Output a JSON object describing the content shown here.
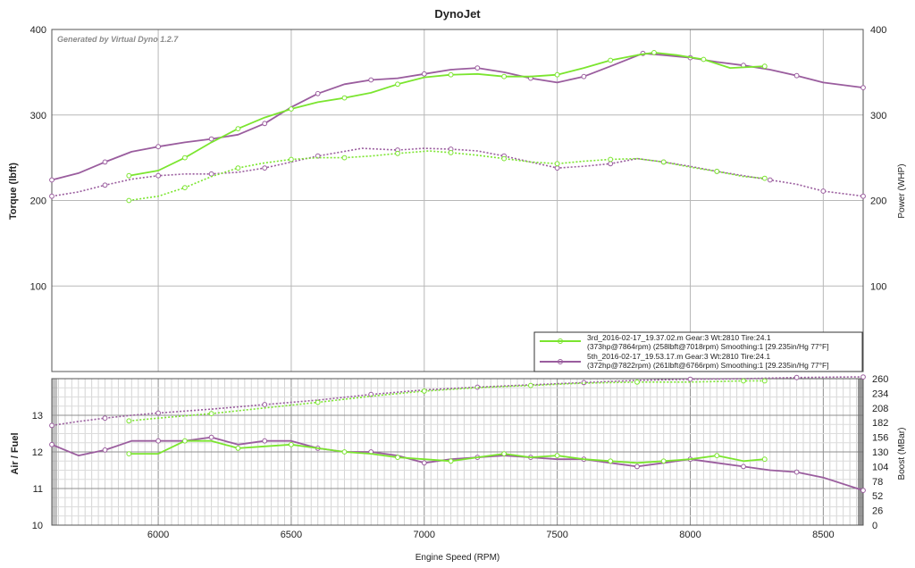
{
  "chart_data": [
    {
      "type": "line",
      "title": "DynoJet",
      "watermark": "Generated by Virtual Dyno 1.2.7",
      "ylabel": "Torque (lbft)",
      "y2label": "Power (WHP)",
      "xlim": [
        5600,
        8650
      ],
      "ylim": [
        0,
        400
      ],
      "y2lim": [
        0,
        400
      ],
      "yticks": [
        "100",
        "200",
        "300",
        "400"
      ],
      "y2ticks": [
        "100",
        "200",
        "300",
        "400"
      ],
      "grid": true,
      "legend_position": "bottom-right",
      "legend": [
        {
          "line1": "3rd_2016-02-17_19.37.02.m Gear:3 Wt:2810 Tire:24.1",
          "line2": "(373hp@7864rpm) (258lbft@7018rpm) Smoothing:1 [29.235in/Hg 77°F]",
          "color": "#7be52f"
        },
        {
          "line1": "5th_2016-02-17_19.53.17.m Gear:3 Wt:2810 Tire:24.1",
          "line2": "(372hp@7822rpm) (261lbft@6766rpm) Smoothing:1 [29.235in/Hg 77°F]",
          "color": "#9a5d9e"
        }
      ],
      "series": [
        {
          "run": "3rd",
          "measure": "power",
          "color": "#7be52f",
          "style": "solid",
          "x": [
            5890,
            6000,
            6100,
            6200,
            6300,
            6400,
            6500,
            6600,
            6700,
            6800,
            6900,
            7000,
            7100,
            7200,
            7300,
            7400,
            7500,
            7600,
            7700,
            7800,
            7864,
            7950,
            8050,
            8150,
            8280
          ],
          "y": [
            229,
            235,
            250,
            268,
            284,
            297,
            307,
            315,
            320,
            326,
            336,
            344,
            347,
            348,
            345,
            345,
            347,
            355,
            364,
            370,
            373,
            370,
            365,
            355,
            357
          ]
        },
        {
          "run": "5th",
          "measure": "power",
          "color": "#9a5d9e",
          "style": "solid",
          "x": [
            5600,
            5700,
            5800,
            5900,
            6000,
            6100,
            6200,
            6300,
            6400,
            6500,
            6600,
            6700,
            6800,
            6900,
            7000,
            7100,
            7200,
            7300,
            7400,
            7500,
            7600,
            7700,
            7822,
            7900,
            8000,
            8100,
            8200,
            8300,
            8400,
            8500,
            8650
          ],
          "y": [
            224,
            232,
            245,
            257,
            263,
            268,
            272,
            277,
            290,
            309,
            325,
            336,
            341,
            343,
            348,
            353,
            355,
            350,
            343,
            338,
            345,
            357,
            372,
            370,
            367,
            362,
            358,
            353,
            346,
            338,
            332
          ]
        },
        {
          "run": "3rd",
          "measure": "torque",
          "color": "#7be52f",
          "style": "dotted",
          "x": [
            5890,
            6000,
            6100,
            6200,
            6300,
            6400,
            6500,
            6600,
            6700,
            6800,
            6900,
            7018,
            7100,
            7200,
            7300,
            7400,
            7500,
            7600,
            7700,
            7800,
            7900,
            8000,
            8100,
            8200,
            8280
          ],
          "y": [
            200,
            205,
            215,
            228,
            238,
            244,
            248,
            250,
            250,
            252,
            255,
            258,
            256,
            253,
            249,
            245,
            243,
            246,
            248,
            249,
            245,
            239,
            234,
            228,
            226
          ]
        },
        {
          "run": "5th",
          "measure": "torque",
          "color": "#9a5d9e",
          "style": "dotted",
          "x": [
            5600,
            5700,
            5800,
            5900,
            6000,
            6100,
            6200,
            6300,
            6400,
            6500,
            6600,
            6766,
            6900,
            7000,
            7100,
            7200,
            7300,
            7400,
            7500,
            7600,
            7700,
            7800,
            7900,
            8000,
            8100,
            8200,
            8300,
            8400,
            8500,
            8650
          ],
          "y": [
            205,
            210,
            218,
            225,
            229,
            231,
            231,
            233,
            238,
            245,
            252,
            261,
            259,
            261,
            260,
            258,
            252,
            245,
            238,
            240,
            243,
            249,
            245,
            240,
            234,
            229,
            224,
            219,
            211,
            205
          ]
        }
      ]
    },
    {
      "type": "line",
      "ylabel": "Air / Fuel",
      "y2label": "Boost (MBar)",
      "xlabel": "Engine Speed (RPM)",
      "xlim": [
        5600,
        8650
      ],
      "xticks": [
        "6000",
        "6500",
        "7000",
        "7500",
        "8000",
        "8500"
      ],
      "ylim": [
        10,
        14
      ],
      "yticks": [
        "10",
        "11",
        "12",
        "13"
      ],
      "y2lim": [
        0,
        260
      ],
      "y2ticks": [
        "0",
        "26",
        "52",
        "78",
        "104",
        "130",
        "156",
        "182",
        "208",
        "234",
        "260"
      ],
      "grid": true,
      "series": [
        {
          "run": "3rd",
          "measure": "air_fuel",
          "color": "#7be52f",
          "style": "solid",
          "x": [
            5890,
            6000,
            6100,
            6200,
            6300,
            6400,
            6500,
            6600,
            6700,
            6800,
            6900,
            7000,
            7100,
            7200,
            7300,
            7400,
            7500,
            7600,
            7700,
            7800,
            7900,
            8000,
            8100,
            8200,
            8280
          ],
          "y": [
            11.95,
            11.95,
            12.3,
            12.3,
            12.1,
            12.15,
            12.2,
            12.1,
            12.0,
            11.95,
            11.85,
            11.8,
            11.75,
            11.85,
            11.95,
            11.85,
            11.9,
            11.8,
            11.75,
            11.7,
            11.75,
            11.8,
            11.9,
            11.75,
            11.8
          ]
        },
        {
          "run": "5th",
          "measure": "air_fuel",
          "color": "#9a5d9e",
          "style": "solid",
          "x": [
            5600,
            5700,
            5800,
            5900,
            6000,
            6100,
            6200,
            6300,
            6400,
            6500,
            6600,
            6700,
            6800,
            6900,
            7000,
            7100,
            7200,
            7300,
            7400,
            7500,
            7600,
            7700,
            7800,
            7900,
            8000,
            8100,
            8200,
            8300,
            8400,
            8500,
            8650
          ],
          "y": [
            12.2,
            11.9,
            12.05,
            12.3,
            12.3,
            12.3,
            12.4,
            12.2,
            12.3,
            12.3,
            12.1,
            12.0,
            12.0,
            11.9,
            11.7,
            11.8,
            11.85,
            11.9,
            11.85,
            11.8,
            11.8,
            11.7,
            11.6,
            11.7,
            11.8,
            11.7,
            11.6,
            11.5,
            11.45,
            11.3,
            10.95
          ]
        },
        {
          "run": "3rd",
          "measure": "boost",
          "color": "#7be52f",
          "style": "dotted",
          "axis": "right",
          "x": [
            5890,
            6000,
            6200,
            6400,
            6600,
            6800,
            7000,
            7200,
            7400,
            7600,
            7800,
            8000,
            8200,
            8280
          ],
          "y": [
            185,
            190,
            198,
            208,
            218,
            229,
            238,
            244,
            248,
            252,
            254,
            254,
            256,
            256
          ]
        },
        {
          "run": "5th",
          "measure": "boost",
          "color": "#9a5d9e",
          "style": "dotted",
          "axis": "right",
          "x": [
            5600,
            5700,
            5800,
            5900,
            6000,
            6200,
            6400,
            6600,
            6800,
            7000,
            7200,
            7400,
            7600,
            7800,
            8000,
            8200,
            8400,
            8600,
            8650
          ],
          "y": [
            177,
            184,
            190,
            195,
            199,
            206,
            214,
            222,
            232,
            240,
            245,
            249,
            253,
            257,
            259,
            260,
            262,
            263,
            263
          ]
        }
      ]
    }
  ]
}
